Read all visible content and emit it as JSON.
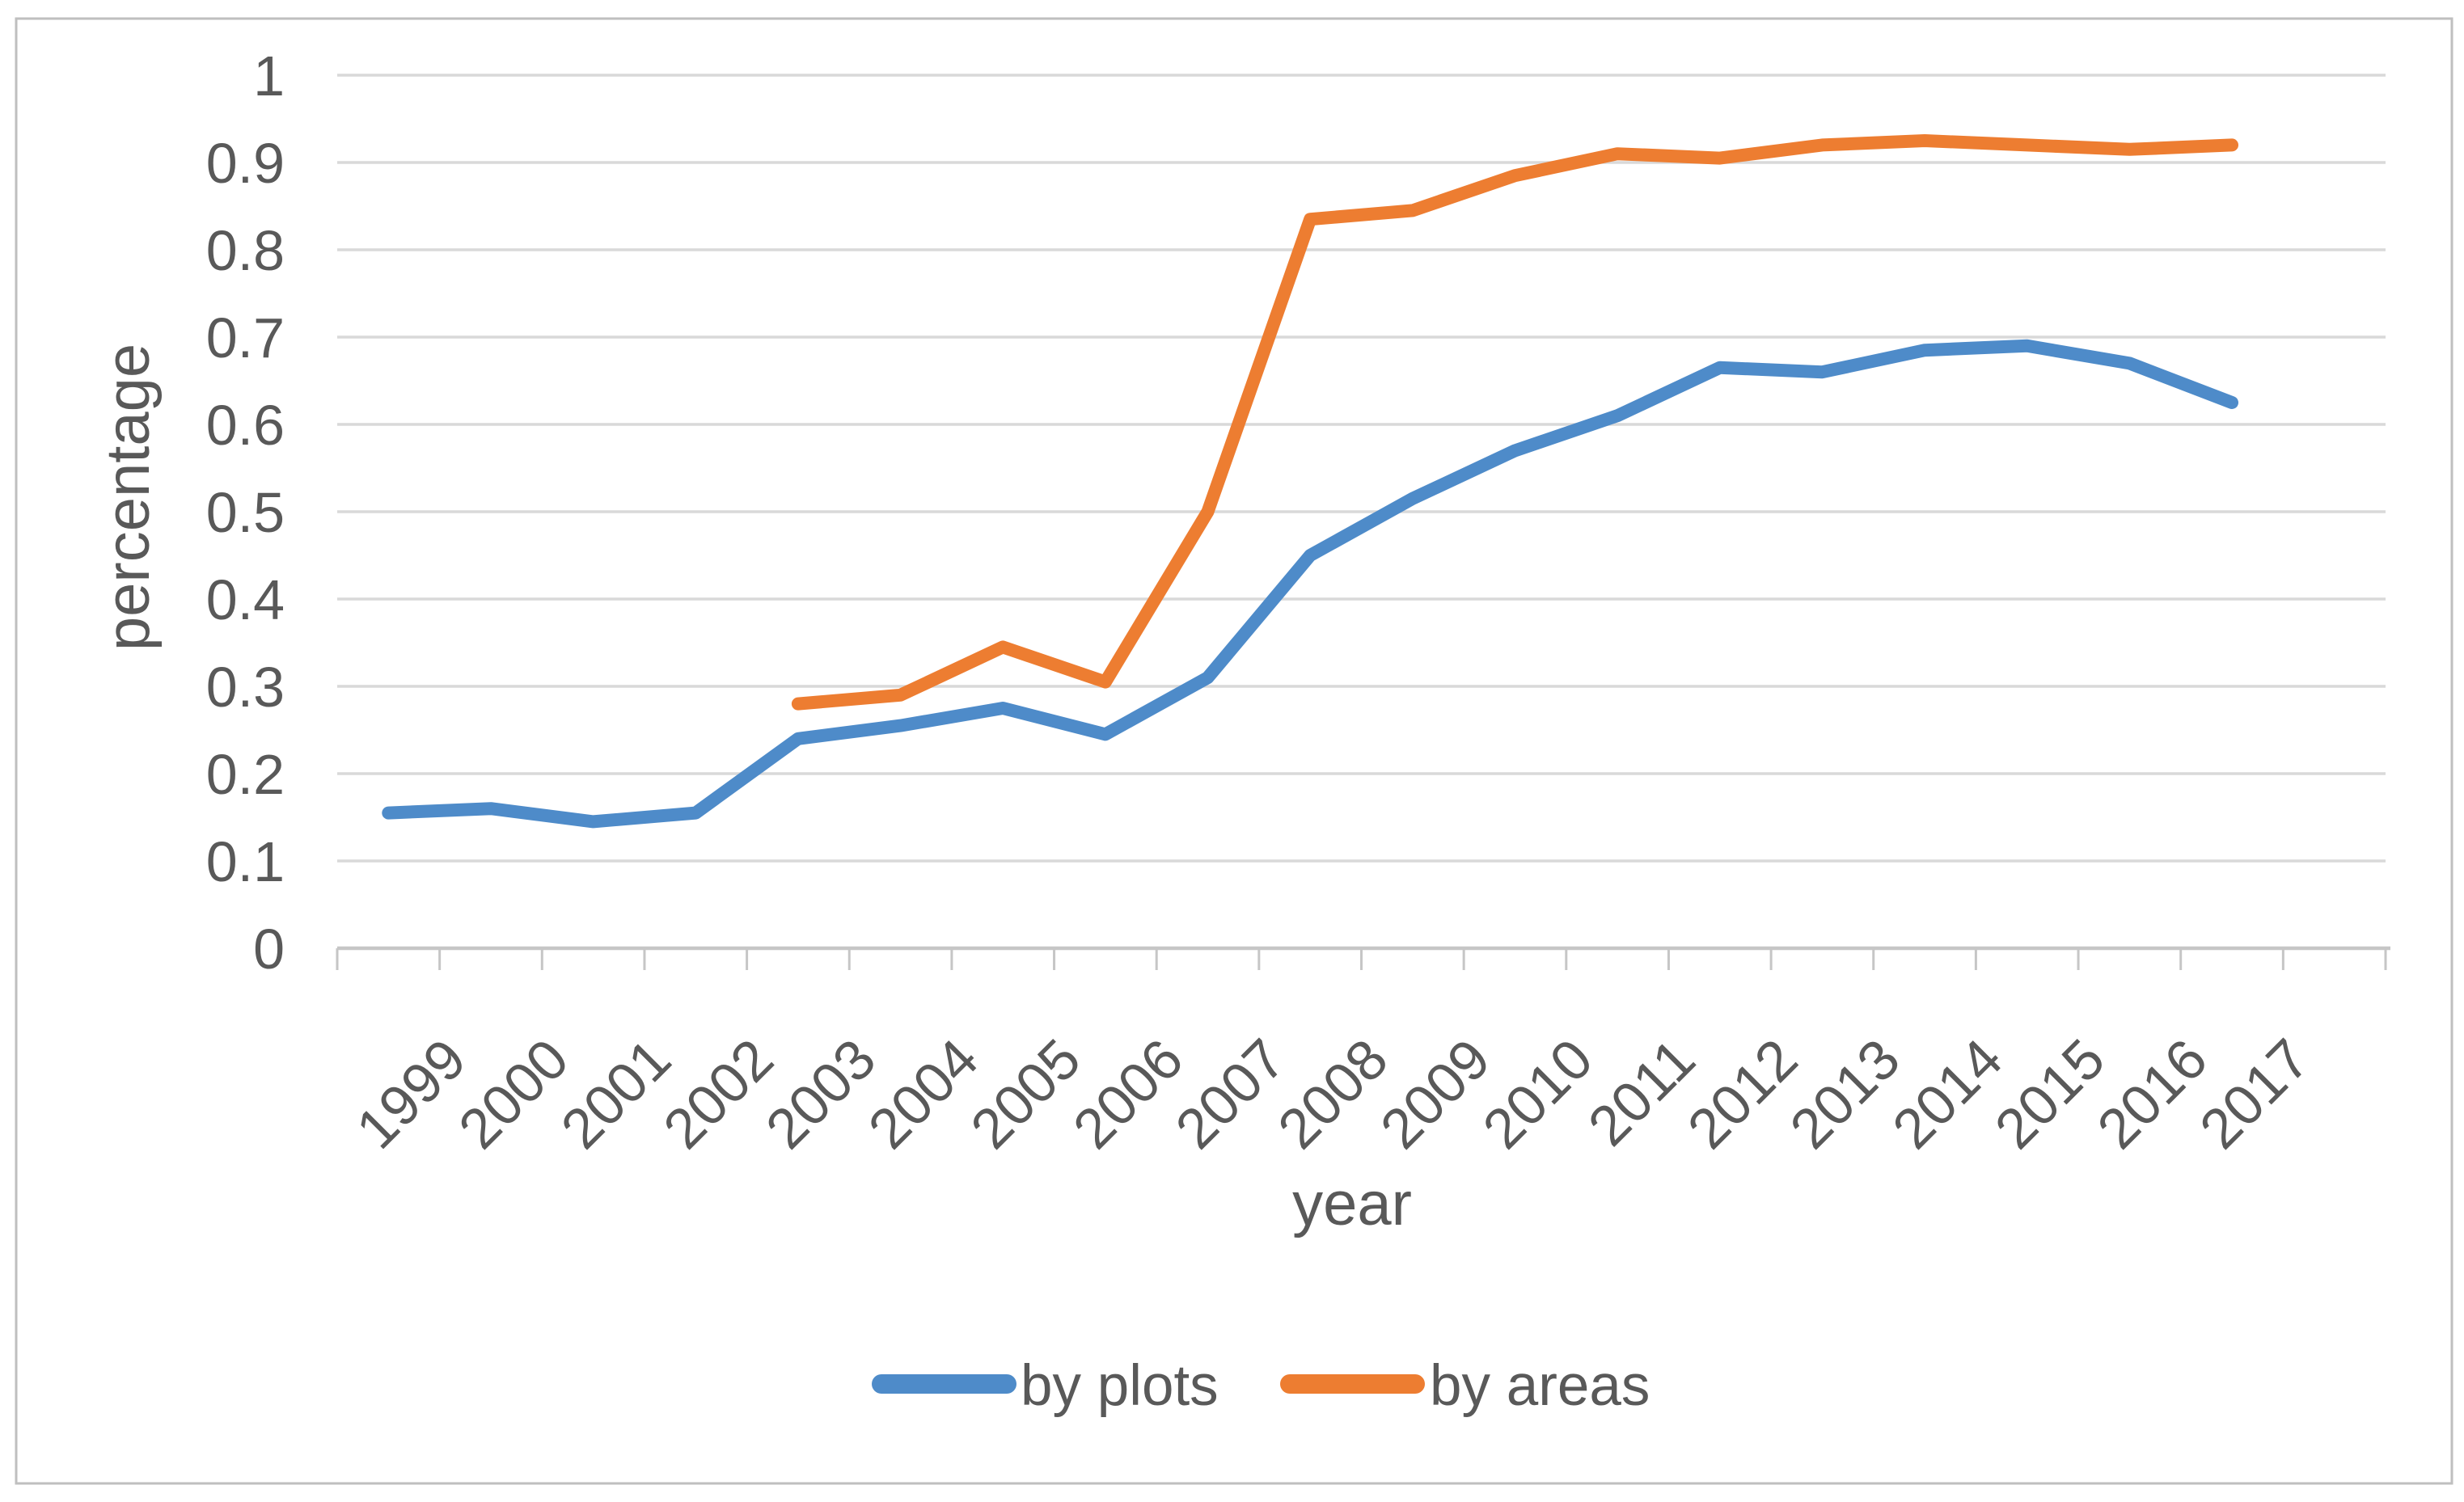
{
  "chart_data": {
    "type": "line",
    "title": "",
    "xlabel": "year",
    "ylabel": "percentage",
    "categories": [
      "1999",
      "2000",
      "2001",
      "2002",
      "2003",
      "2004",
      "2005",
      "2006",
      "2007",
      "2008",
      "2009",
      "2010",
      "2011",
      "2012",
      "2013",
      "2014",
      "2015",
      "2016",
      "2017"
    ],
    "series": [
      {
        "name": "by plots",
        "color": "#4E8BC9",
        "values": [
          0.155,
          0.16,
          0.145,
          0.155,
          0.24,
          0.255,
          0.275,
          0.245,
          0.31,
          0.45,
          0.515,
          0.57,
          0.61,
          0.665,
          0.66,
          0.685,
          0.69,
          0.67,
          0.625
        ]
      },
      {
        "name": "by areas",
        "color": "#ED7D31",
        "values": [
          null,
          null,
          null,
          null,
          0.28,
          0.29,
          0.345,
          0.305,
          0.5,
          0.835,
          0.845,
          0.885,
          0.91,
          0.905,
          0.92,
          0.925,
          0.92,
          0.915,
          0.92
        ]
      }
    ],
    "ylim": [
      0,
      1
    ],
    "ytick_step": 0.1,
    "ytick_labels": [
      "0",
      "0.1",
      "0.2",
      "0.3",
      "0.4",
      "0.5",
      "0.6",
      "0.7",
      "0.8",
      "0.9",
      "1"
    ],
    "grid": true,
    "legend_position": "bottom-center"
  },
  "style": {
    "background": "#FFFFFF",
    "border_color": "#BFBFBF",
    "gridline_color": "#D9D9D9",
    "axis_color": "#C6C6C6",
    "text_color": "#595959"
  }
}
